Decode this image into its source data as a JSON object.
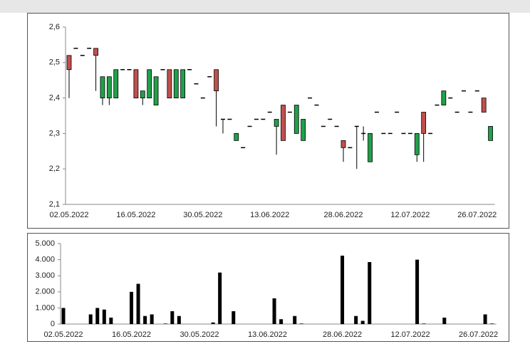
{
  "chart_data": [
    {
      "type": "candlestick",
      "categories": [
        "02.05.2022",
        null,
        null,
        null,
        null,
        null,
        null,
        null,
        null,
        null,
        "16.05.2022",
        null,
        null,
        null,
        null,
        null,
        null,
        null,
        null,
        null,
        "30.05.2022",
        null,
        null,
        null,
        null,
        null,
        null,
        null,
        null,
        null,
        "13.06.2022",
        null,
        null,
        null,
        null,
        null,
        null,
        null,
        null,
        null,
        null,
        "28.06.2022",
        null,
        null,
        null,
        null,
        null,
        null,
        null,
        null,
        null,
        "12.07.2022",
        null,
        null,
        null,
        null,
        null,
        null,
        null,
        null,
        null,
        "26.07.2022",
        null,
        null
      ],
      "open": [
        2.52,
        2.54,
        2.52,
        2.54,
        2.54,
        2.4,
        2.4,
        2.4,
        2.48,
        2.48,
        2.48,
        2.4,
        2.4,
        2.38,
        2.48,
        2.48,
        2.4,
        2.4,
        2.48,
        2.44,
        2.4,
        2.46,
        2.48,
        2.34,
        2.34,
        2.28,
        2.26,
        2.32,
        2.34,
        2.34,
        2.36,
        2.32,
        2.38,
        2.36,
        2.3,
        2.28,
        2.4,
        2.38,
        2.32,
        2.34,
        2.32,
        2.28,
        2.26,
        2.32,
        2.3,
        2.22,
        2.36,
        2.3,
        2.3,
        2.36,
        2.3,
        2.3,
        2.24,
        2.36,
        2.3,
        2.38,
        2.38,
        2.4,
        2.36,
        2.42,
        2.36,
        2.42,
        2.4,
        2.28
      ],
      "high": [
        2.52,
        2.54,
        2.52,
        2.54,
        2.54,
        2.46,
        2.46,
        2.48,
        2.48,
        2.48,
        2.48,
        2.42,
        2.48,
        2.46,
        2.48,
        2.48,
        2.48,
        2.48,
        2.48,
        2.44,
        2.4,
        2.46,
        2.48,
        2.34,
        2.34,
        2.3,
        2.26,
        2.32,
        2.34,
        2.34,
        2.36,
        2.34,
        2.38,
        2.36,
        2.38,
        2.34,
        2.4,
        2.38,
        2.32,
        2.34,
        2.32,
        2.28,
        2.26,
        2.32,
        2.32,
        2.3,
        2.36,
        2.3,
        2.3,
        2.36,
        2.3,
        2.3,
        2.3,
        2.36,
        2.3,
        2.38,
        2.42,
        2.4,
        2.36,
        2.42,
        2.36,
        2.42,
        2.4,
        2.32
      ],
      "low": [
        2.4,
        2.54,
        2.52,
        2.54,
        2.42,
        2.38,
        2.38,
        2.4,
        2.48,
        2.48,
        2.4,
        2.38,
        2.4,
        2.38,
        2.48,
        2.4,
        2.4,
        2.4,
        2.48,
        2.44,
        2.4,
        2.46,
        2.32,
        2.3,
        2.34,
        2.28,
        2.26,
        2.32,
        2.34,
        2.34,
        2.36,
        2.24,
        2.28,
        2.36,
        2.3,
        2.28,
        2.4,
        2.38,
        2.32,
        2.34,
        2.32,
        2.22,
        2.26,
        2.2,
        2.28,
        2.22,
        2.36,
        2.3,
        2.3,
        2.36,
        2.3,
        2.3,
        2.22,
        2.22,
        2.3,
        2.38,
        2.38,
        2.4,
        2.36,
        2.42,
        2.36,
        2.42,
        2.36,
        2.28
      ],
      "close": [
        2.48,
        2.54,
        2.52,
        2.54,
        2.52,
        2.46,
        2.46,
        2.48,
        2.48,
        2.48,
        2.4,
        2.42,
        2.48,
        2.46,
        2.48,
        2.4,
        2.48,
        2.48,
        2.48,
        2.44,
        2.4,
        2.46,
        2.42,
        2.34,
        2.34,
        2.3,
        2.26,
        2.32,
        2.34,
        2.34,
        2.36,
        2.34,
        2.28,
        2.36,
        2.38,
        2.34,
        2.4,
        2.38,
        2.32,
        2.34,
        2.32,
        2.26,
        2.26,
        2.32,
        2.3,
        2.3,
        2.36,
        2.3,
        2.3,
        2.36,
        2.3,
        2.3,
        2.3,
        2.3,
        2.3,
        2.38,
        2.42,
        2.4,
        2.36,
        2.42,
        2.36,
        2.42,
        2.36,
        2.32
      ],
      "up_color": "#20a04a",
      "down_color": "#c0504d",
      "ylim": [
        2.1,
        2.6
      ],
      "yticks": [
        {
          "value": 2.1,
          "label": "2,1"
        },
        {
          "value": 2.2,
          "label": "2,2"
        },
        {
          "value": 2.3,
          "label": "2,3"
        },
        {
          "value": 2.4,
          "label": "2,4"
        },
        {
          "value": 2.5,
          "label": "2,5"
        },
        {
          "value": 2.6,
          "label": "2,6"
        }
      ]
    },
    {
      "type": "bar",
      "categories": [
        "02.05.2022",
        null,
        null,
        null,
        null,
        null,
        null,
        null,
        null,
        null,
        "16.05.2022",
        null,
        null,
        null,
        null,
        null,
        null,
        null,
        null,
        null,
        "30.05.2022",
        null,
        null,
        null,
        null,
        null,
        null,
        null,
        null,
        null,
        "13.06.2022",
        null,
        null,
        null,
        null,
        null,
        null,
        null,
        null,
        null,
        null,
        "28.06.2022",
        null,
        null,
        null,
        null,
        null,
        null,
        null,
        null,
        null,
        "12.07.2022",
        null,
        null,
        null,
        null,
        null,
        null,
        null,
        null,
        null,
        "26.07.2022",
        null,
        null
      ],
      "values": [
        1000,
        0,
        0,
        0,
        600,
        1000,
        900,
        400,
        0,
        0,
        2000,
        2500,
        500,
        600,
        0,
        30,
        800,
        500,
        0,
        0,
        0,
        0,
        100,
        3200,
        0,
        800,
        0,
        0,
        0,
        0,
        0,
        1600,
        300,
        0,
        500,
        30,
        0,
        0,
        0,
        0,
        0,
        4250,
        0,
        500,
        200,
        3850,
        0,
        0,
        0,
        0,
        0,
        0,
        4000,
        30,
        0,
        0,
        400,
        0,
        0,
        0,
        0,
        0,
        600,
        30
      ],
      "color": "#000000",
      "ylim": [
        0,
        5000
      ],
      "yticks": [
        0,
        {
          "value": 1000,
          "label": "1.000"
        },
        {
          "value": 2000,
          "label": "2.000"
        },
        {
          "value": 3000,
          "label": "3.000"
        },
        {
          "value": 4000,
          "label": "4.000"
        },
        {
          "value": 5000,
          "label": "5.000"
        }
      ]
    }
  ]
}
